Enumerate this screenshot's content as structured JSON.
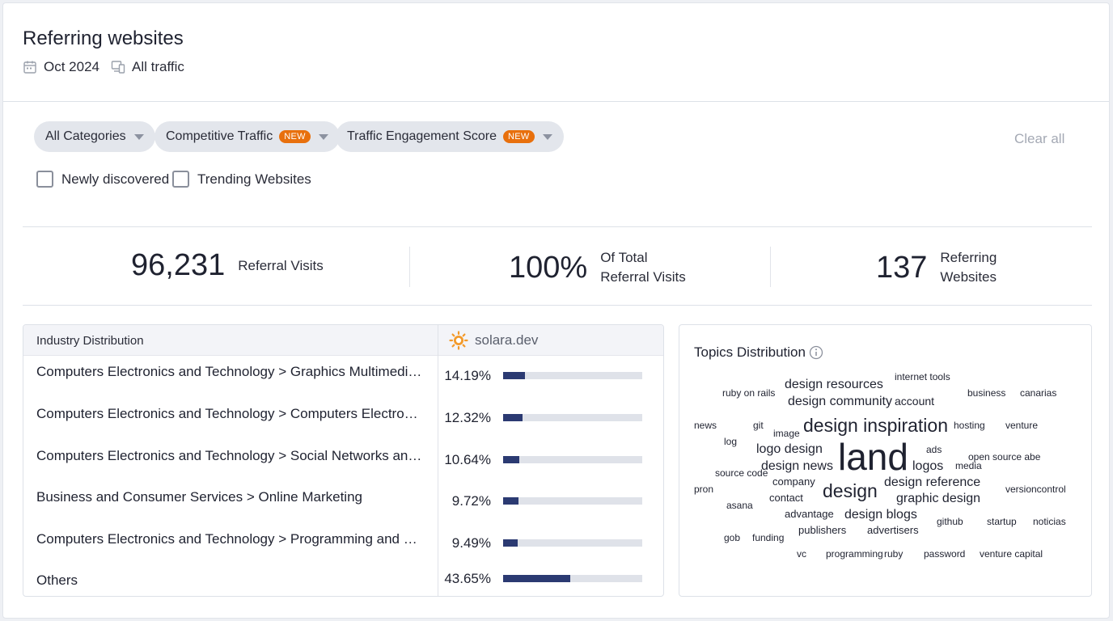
{
  "header": {
    "title": "Referring websites",
    "date": "Oct 2024",
    "traffic": "All traffic"
  },
  "filters": {
    "chips": [
      {
        "label": "All Categories",
        "badge": ""
      },
      {
        "label": "Competitive Traffic",
        "badge": "NEW"
      },
      {
        "label": "Traffic Engagement Score",
        "badge": "NEW"
      }
    ],
    "clear_all": "Clear all",
    "checkboxes": [
      {
        "label": "Newly discovered",
        "checked": false
      },
      {
        "label": "Trending Websites",
        "checked": false
      }
    ]
  },
  "stats": [
    {
      "value": "96,231",
      "label_line1": "Referral Visits",
      "label_line2": ""
    },
    {
      "value": "100%",
      "label_line1": "Of Total",
      "label_line2": "Referral Visits"
    },
    {
      "value": "137",
      "label_line1": "Referring",
      "label_line2": "Websites"
    }
  ],
  "industry": {
    "header": "Industry Distribution",
    "site": "solara.dev",
    "rows": [
      {
        "label": "Computers Electronics and Technology > Graphics Multimedia and Web Design",
        "pct": "14.19%",
        "share": 0.1419
      },
      {
        "label": "Computers Electronics and Technology > Computers Electronics and Technology",
        "pct": "12.32%",
        "share": 0.1232
      },
      {
        "label": "Computers Electronics and Technology > Social Networks and Online Communities",
        "pct": "10.64%",
        "share": 0.1064
      },
      {
        "label": "Business and Consumer Services > Online Marketing",
        "pct": "9.72%",
        "share": 0.0972
      },
      {
        "label": "Computers Electronics and Technology > Programming and Developer Software",
        "pct": "9.49%",
        "share": 0.0949
      },
      {
        "label": "Others",
        "pct": "43.65%",
        "share": 0.4365
      }
    ]
  },
  "topics": {
    "title": "Topics Distribution",
    "words": [
      "internet tools",
      "ruby on rails",
      "design resources",
      "design community",
      "account",
      "business",
      "canarias",
      "news",
      "git",
      "image",
      "design inspiration",
      "hosting",
      "venture",
      "log",
      "logo design",
      "land",
      "ads",
      "open source abe",
      "source code",
      "design news",
      "logos",
      "media",
      "company",
      "design reference",
      "pron",
      "design",
      "versioncontrol",
      "contact",
      "graphic design",
      "asana",
      "advantage",
      "design blogs",
      "github",
      "startup",
      "noticias",
      "publishers",
      "advertisers",
      "gob",
      "funding",
      "vc",
      "programming",
      "ruby",
      "password",
      "venture capital"
    ]
  },
  "colors": {
    "accent_bar": "#2b3a72",
    "new_badge": "#e8700d",
    "chip_bg": "#e3e6ec"
  }
}
